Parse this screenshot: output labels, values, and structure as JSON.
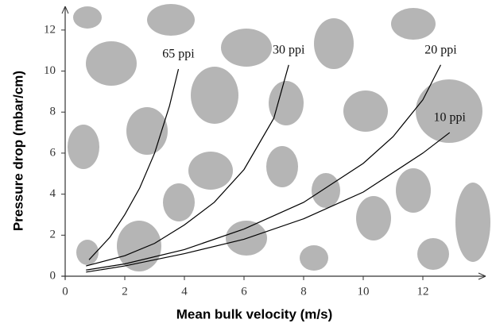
{
  "chart_data": {
    "type": "line",
    "x_label": "Mean bulk velocity (m/s)",
    "y_label": "Pressure drop (mbar/cm)",
    "xlim": [
      0,
      14
    ],
    "ylim": [
      0,
      13
    ],
    "xticks": [
      0,
      2,
      4,
      6,
      8,
      10,
      12
    ],
    "yticks": [
      0,
      2,
      4,
      6,
      8,
      10,
      12
    ],
    "series": [
      {
        "name": "65 ppi",
        "color": "#000000",
        "x": [
          0.8,
          1.5,
          2,
          2.5,
          3,
          3.5,
          3.8
        ],
        "values": [
          0.8,
          1.9,
          3,
          4.3,
          6,
          8.3,
          10.1
        ]
      },
      {
        "name": "30 ppi",
        "color": "#000000",
        "x": [
          0.7,
          2,
          3,
          4,
          5,
          6,
          7,
          7.5
        ],
        "values": [
          0.5,
          1,
          1.6,
          2.5,
          3.6,
          5.2,
          7.7,
          10.3
        ]
      },
      {
        "name": "20 ppi",
        "color": "#000000",
        "x": [
          0.7,
          2,
          4,
          6,
          8,
          10,
          11,
          12,
          12.6
        ],
        "values": [
          0.3,
          0.6,
          1.3,
          2.3,
          3.6,
          5.5,
          6.8,
          8.6,
          10.3
        ]
      },
      {
        "name": "10 ppi",
        "color": "#000000",
        "x": [
          0.7,
          2,
          4,
          6,
          8,
          10,
          12,
          12.9
        ],
        "values": [
          0.2,
          0.5,
          1.1,
          1.8,
          2.8,
          4.1,
          6,
          7
        ]
      }
    ]
  }
}
